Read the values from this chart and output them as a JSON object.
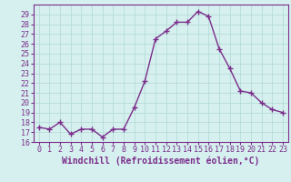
{
  "x": [
    0,
    1,
    2,
    3,
    4,
    5,
    6,
    7,
    8,
    9,
    10,
    11,
    12,
    13,
    14,
    15,
    16,
    17,
    18,
    19,
    20,
    21,
    22,
    23
  ],
  "y": [
    17.5,
    17.3,
    18.0,
    16.8,
    17.3,
    17.3,
    16.5,
    17.3,
    17.3,
    19.5,
    22.2,
    26.5,
    27.3,
    28.2,
    28.2,
    29.3,
    28.8,
    25.5,
    23.5,
    21.2,
    21.0,
    20.0,
    19.3,
    19.0
  ],
  "line_color": "#7B2D8B",
  "marker": "+",
  "marker_size": 4,
  "bg_color": "#d5f0ee",
  "grid_color": "#b0d8d5",
  "xlabel": "Windchill (Refroidissement éolien,°C)",
  "xlabel_fontsize": 7,
  "tick_fontsize": 6,
  "ylim": [
    16,
    30
  ],
  "xlim": [
    -0.5,
    23.5
  ],
  "yticks": [
    16,
    17,
    18,
    19,
    20,
    21,
    22,
    23,
    24,
    25,
    26,
    27,
    28,
    29
  ],
  "xticks": [
    0,
    1,
    2,
    3,
    4,
    5,
    6,
    7,
    8,
    9,
    10,
    11,
    12,
    13,
    14,
    15,
    16,
    17,
    18,
    19,
    20,
    21,
    22,
    23
  ],
  "linewidth": 1.0
}
